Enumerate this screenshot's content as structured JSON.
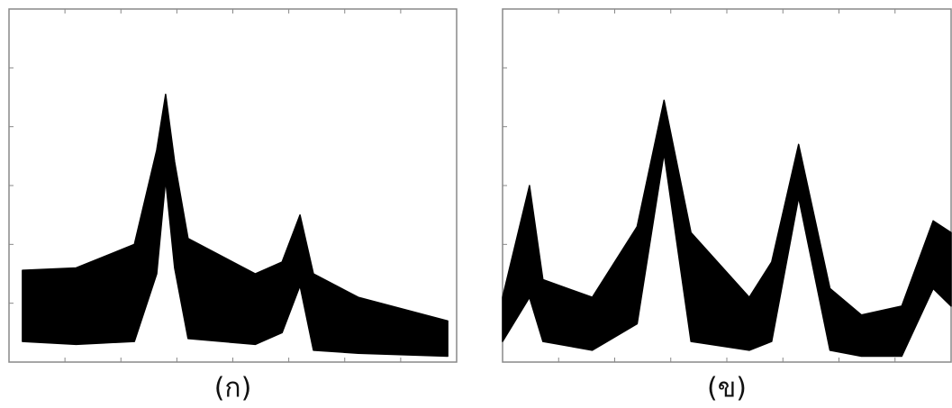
{
  "chart_data": [
    {
      "type": "area",
      "caption": "(ก)",
      "color": "#000000",
      "x": [
        3,
        15,
        28,
        33,
        35,
        37,
        40,
        55,
        61,
        65,
        68,
        78,
        98
      ],
      "values": [
        1.56,
        1.6,
        2.0,
        3.6,
        4.55,
        3.4,
        2.1,
        1.5,
        1.7,
        2.5,
        1.5,
        1.1,
        0.7
      ],
      "lows": [
        0.35,
        0.3,
        0.35,
        1.5,
        3.1,
        1.6,
        0.4,
        0.3,
        0.5,
        1.3,
        0.2,
        0.15,
        0.1
      ],
      "xlim": [
        0,
        100
      ],
      "ylim": [
        0,
        6
      ]
    },
    {
      "type": "area",
      "caption": "(ข)",
      "color": "#000000",
      "x": [
        0,
        6,
        9,
        20,
        30,
        36,
        42,
        55,
        60,
        66,
        73,
        80,
        89,
        96,
        100
      ],
      "values": [
        1.1,
        3.0,
        1.4,
        1.1,
        2.3,
        4.45,
        2.2,
        1.1,
        1.7,
        3.7,
        1.25,
        0.8,
        0.95,
        2.4,
        2.2
      ],
      "lows": [
        0.35,
        1.1,
        0.35,
        0.2,
        0.65,
        3.55,
        0.35,
        0.2,
        0.35,
        2.8,
        0.2,
        0.1,
        0.1,
        1.25,
        0.95
      ],
      "xlim": [
        0,
        100
      ],
      "ylim": [
        0,
        6
      ]
    }
  ]
}
